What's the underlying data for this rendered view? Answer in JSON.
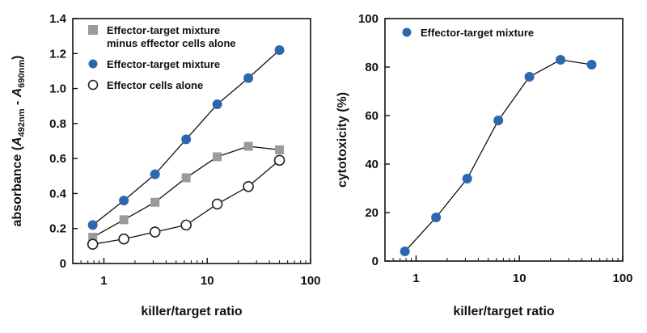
{
  "chart_data": [
    {
      "type": "line",
      "xscale": "log",
      "xlim": [
        0.5,
        100
      ],
      "ylim": [
        0,
        1.4
      ],
      "xticks": [
        {
          "value": 1,
          "label": "1"
        },
        {
          "value": 10,
          "label": "10"
        },
        {
          "value": 100,
          "label": "100"
        }
      ],
      "yticks": [
        {
          "value": 0,
          "label": "0"
        },
        {
          "value": 0.2,
          "label": "0.2"
        },
        {
          "value": 0.4,
          "label": "0.4"
        },
        {
          "value": 0.6,
          "label": "0.6"
        },
        {
          "value": 0.8,
          "label": "0.8"
        },
        {
          "value": 1.0,
          "label": "1.0"
        },
        {
          "value": 1.2,
          "label": "1.2"
        },
        {
          "value": 1.4,
          "label": "1.4"
        }
      ],
      "xlabel": "killer/target ratio",
      "ylabel": {
        "prefix": "absorbance (",
        "a1": "A",
        "sub1": "492nm",
        "mid": " - ",
        "a2": "A",
        "sub2": "690nm",
        "suffix": ")"
      },
      "legend_position": "top-left",
      "series": [
        {
          "name_lines": [
            "Effector-target mixture",
            "minus effector cells alone"
          ],
          "marker": "square",
          "color": "#9a9a9a",
          "x": [
            0.78,
            1.56,
            3.125,
            6.25,
            12.5,
            25,
            50
          ],
          "y": [
            0.15,
            0.25,
            0.35,
            0.49,
            0.61,
            0.67,
            0.65
          ]
        },
        {
          "name_lines": [
            "Effector-target mixture"
          ],
          "marker": "circle",
          "color": "#2e67b1",
          "x": [
            0.78,
            1.56,
            3.125,
            6.25,
            12.5,
            25,
            50
          ],
          "y": [
            0.22,
            0.36,
            0.51,
            0.71,
            0.91,
            1.06,
            1.22
          ]
        },
        {
          "name_lines": [
            "Effector cells alone"
          ],
          "marker": "open-circle",
          "color": "#222222",
          "x": [
            0.78,
            1.56,
            3.125,
            6.25,
            12.5,
            25,
            50
          ],
          "y": [
            0.11,
            0.14,
            0.18,
            0.22,
            0.34,
            0.44,
            0.59
          ]
        }
      ]
    },
    {
      "type": "line",
      "xscale": "log",
      "xlim": [
        0.5,
        100
      ],
      "ylim": [
        0,
        100
      ],
      "xticks": [
        {
          "value": 1,
          "label": "1"
        },
        {
          "value": 10,
          "label": "10"
        },
        {
          "value": 100,
          "label": "100"
        }
      ],
      "yticks": [
        {
          "value": 0,
          "label": "0"
        },
        {
          "value": 20,
          "label": "20"
        },
        {
          "value": 40,
          "label": "40"
        },
        {
          "value": 60,
          "label": "60"
        },
        {
          "value": 80,
          "label": "80"
        },
        {
          "value": 100,
          "label": "100"
        }
      ],
      "xlabel": "killer/target ratio",
      "ylabel": {
        "prefix": "cytotoxicity (%)"
      },
      "legend_position": "top-left",
      "series": [
        {
          "name_lines": [
            "Effector-target mixture"
          ],
          "marker": "circle",
          "color": "#2e67b1",
          "x": [
            0.78,
            1.56,
            3.125,
            6.25,
            12.5,
            25,
            50
          ],
          "y": [
            4,
            18,
            34,
            58,
            76,
            83,
            81
          ]
        }
      ]
    }
  ]
}
